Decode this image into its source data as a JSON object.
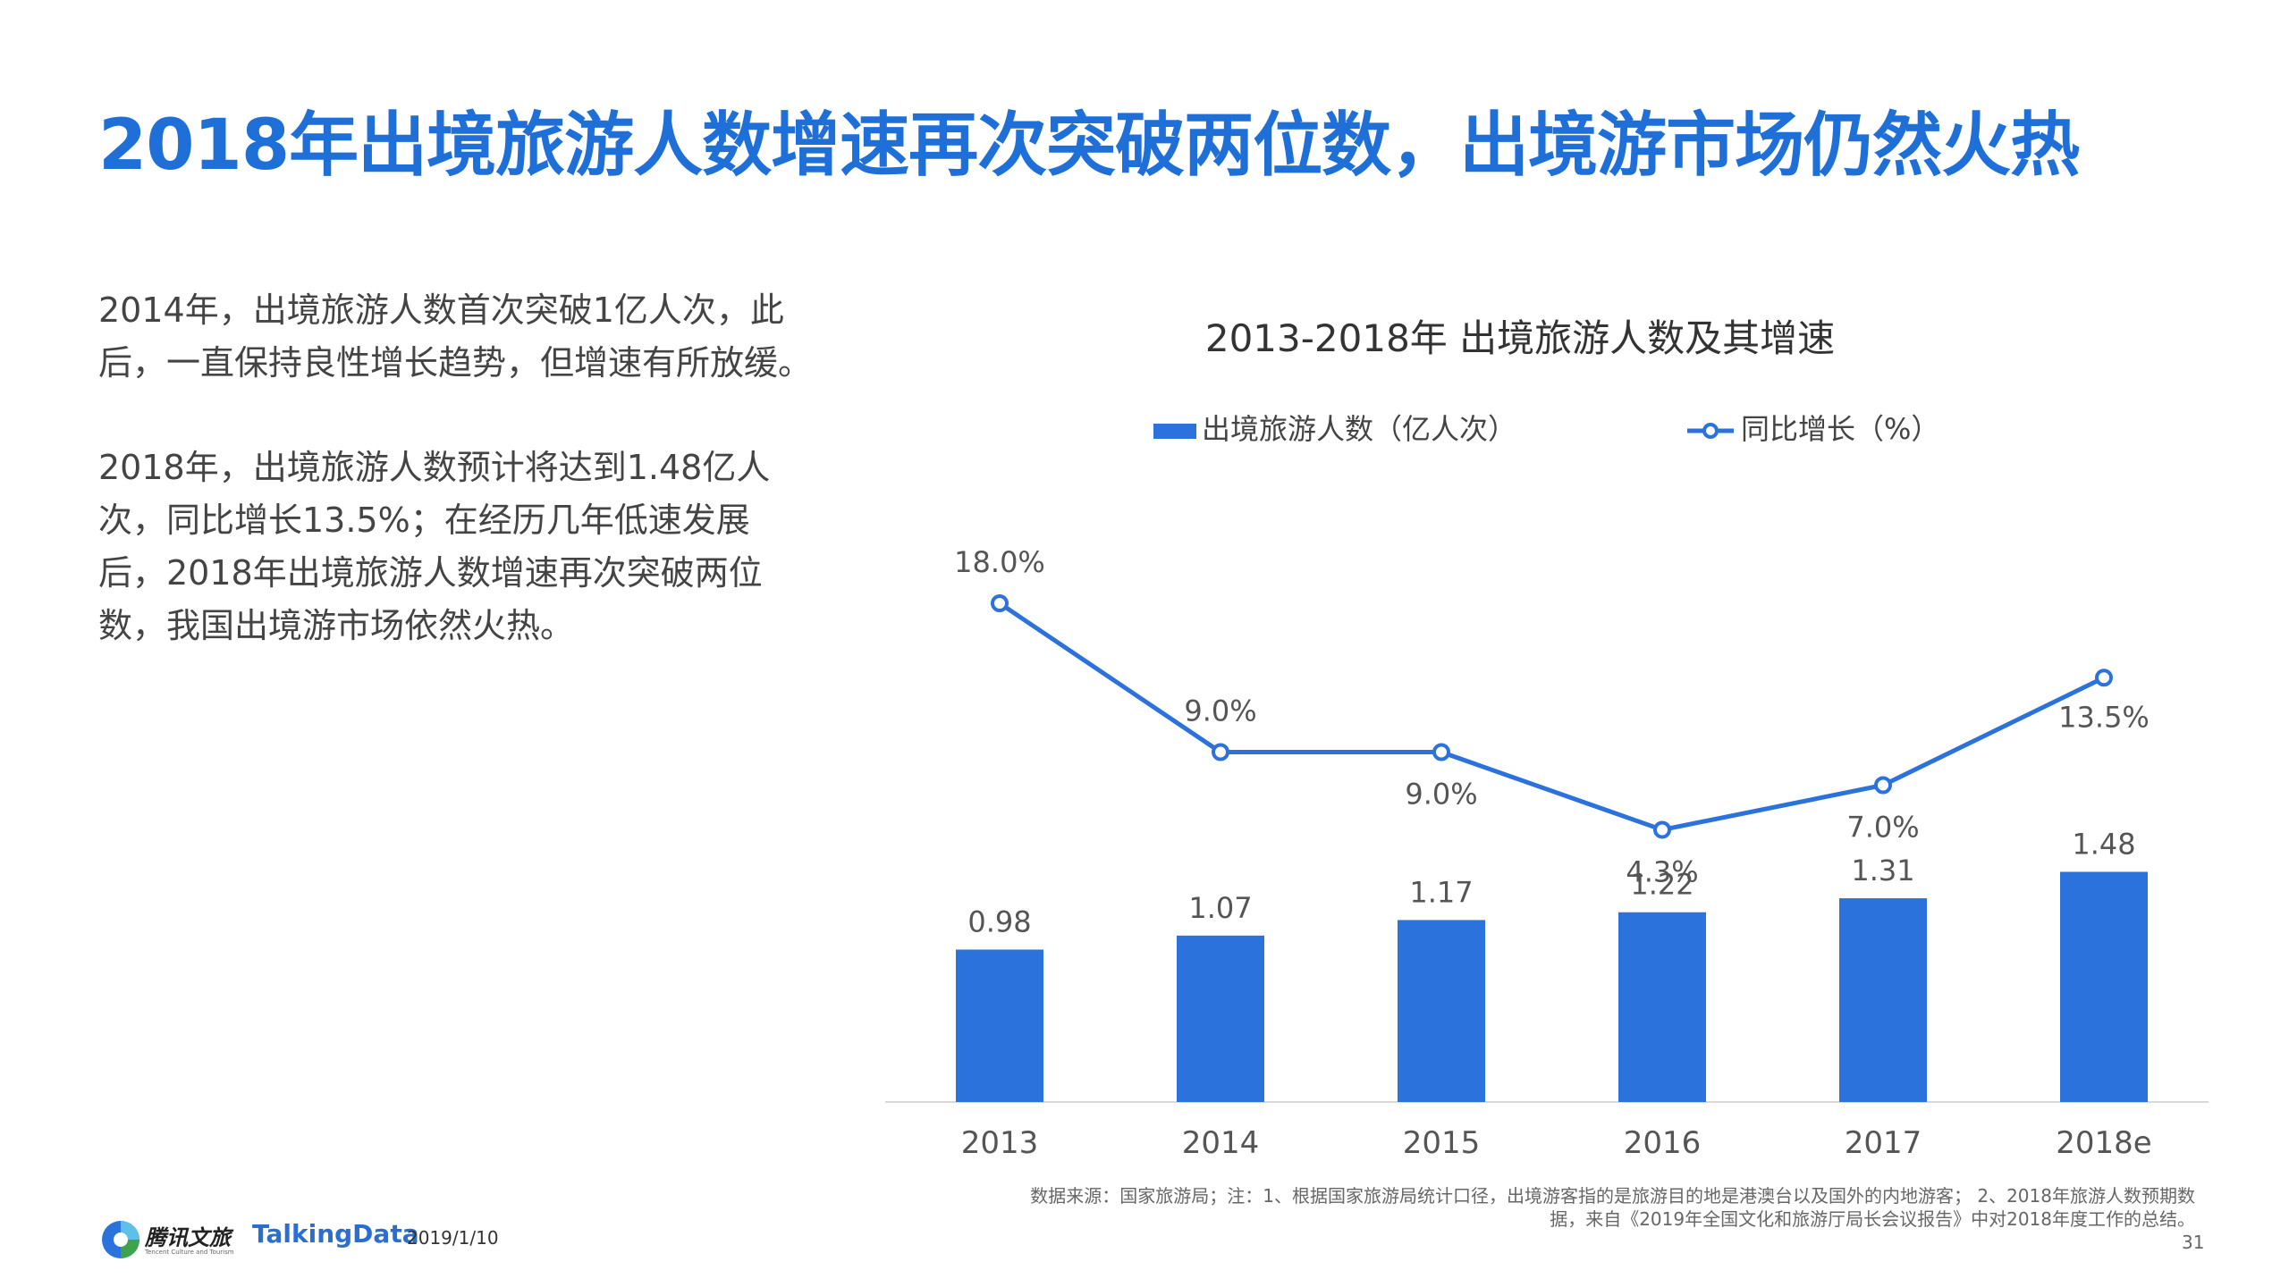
{
  "title": "2018年出境旅游人数增速再次突破两位数，出境游市场仍然火热",
  "paragraphs": [
    "2014年，出境旅游人数首次突破1亿人次，此后，一直保持良性增长趋势，但增速有所放缓。",
    "2018年，出境旅游人数预计将达到1.48亿人次，同比增长13.5%；在经历几年低速发展后，2018年出境旅游人数增速再次突破两位数，我国出境游市场依然火热。"
  ],
  "chart_data": {
    "type": "bar",
    "title": "2013-2018年 出境旅游人数及其增速",
    "categories": [
      "2013",
      "2014",
      "2015",
      "2016",
      "2017",
      "2018e"
    ],
    "series": [
      {
        "name": "出境旅游人数（亿人次）",
        "type": "bar",
        "values": [
          0.98,
          1.07,
          1.17,
          1.22,
          1.31,
          1.48
        ],
        "labels": [
          "0.98",
          "1.07",
          "1.17",
          "1.22",
          "1.31",
          "1.48"
        ],
        "color": "#2b72dc"
      },
      {
        "name": "同比增长（%）",
        "type": "line",
        "values": [
          18.0,
          9.0,
          9.0,
          4.3,
          7.0,
          13.5
        ],
        "labels": [
          "18.0%",
          "9.0%",
          "9.0%",
          "4.3%",
          "7.0%",
          "13.5%"
        ],
        "color": "#2b72dc"
      }
    ],
    "legend_position": "top",
    "grid": false
  },
  "source": {
    "line1": "数据来源：国家旅游局；注：1、根据国家旅游局统计口径，出境游客指的是旅游目的地是港澳台以及国外的内地游客；  2、2018年旅游人数预期数",
    "line2": "据，来自《2019年全国文化和旅游厅局长会议报告》中对2018年度工作的总结。"
  },
  "footer": {
    "brand_cn": "腾讯文旅",
    "brand_sub": "Tencent Culture and Tourism",
    "brand_td": "TalkingData",
    "date": "2019/1/10",
    "page": "31"
  },
  "colors": {
    "accent": "#1f6fd8",
    "bar": "#2b72dc"
  }
}
